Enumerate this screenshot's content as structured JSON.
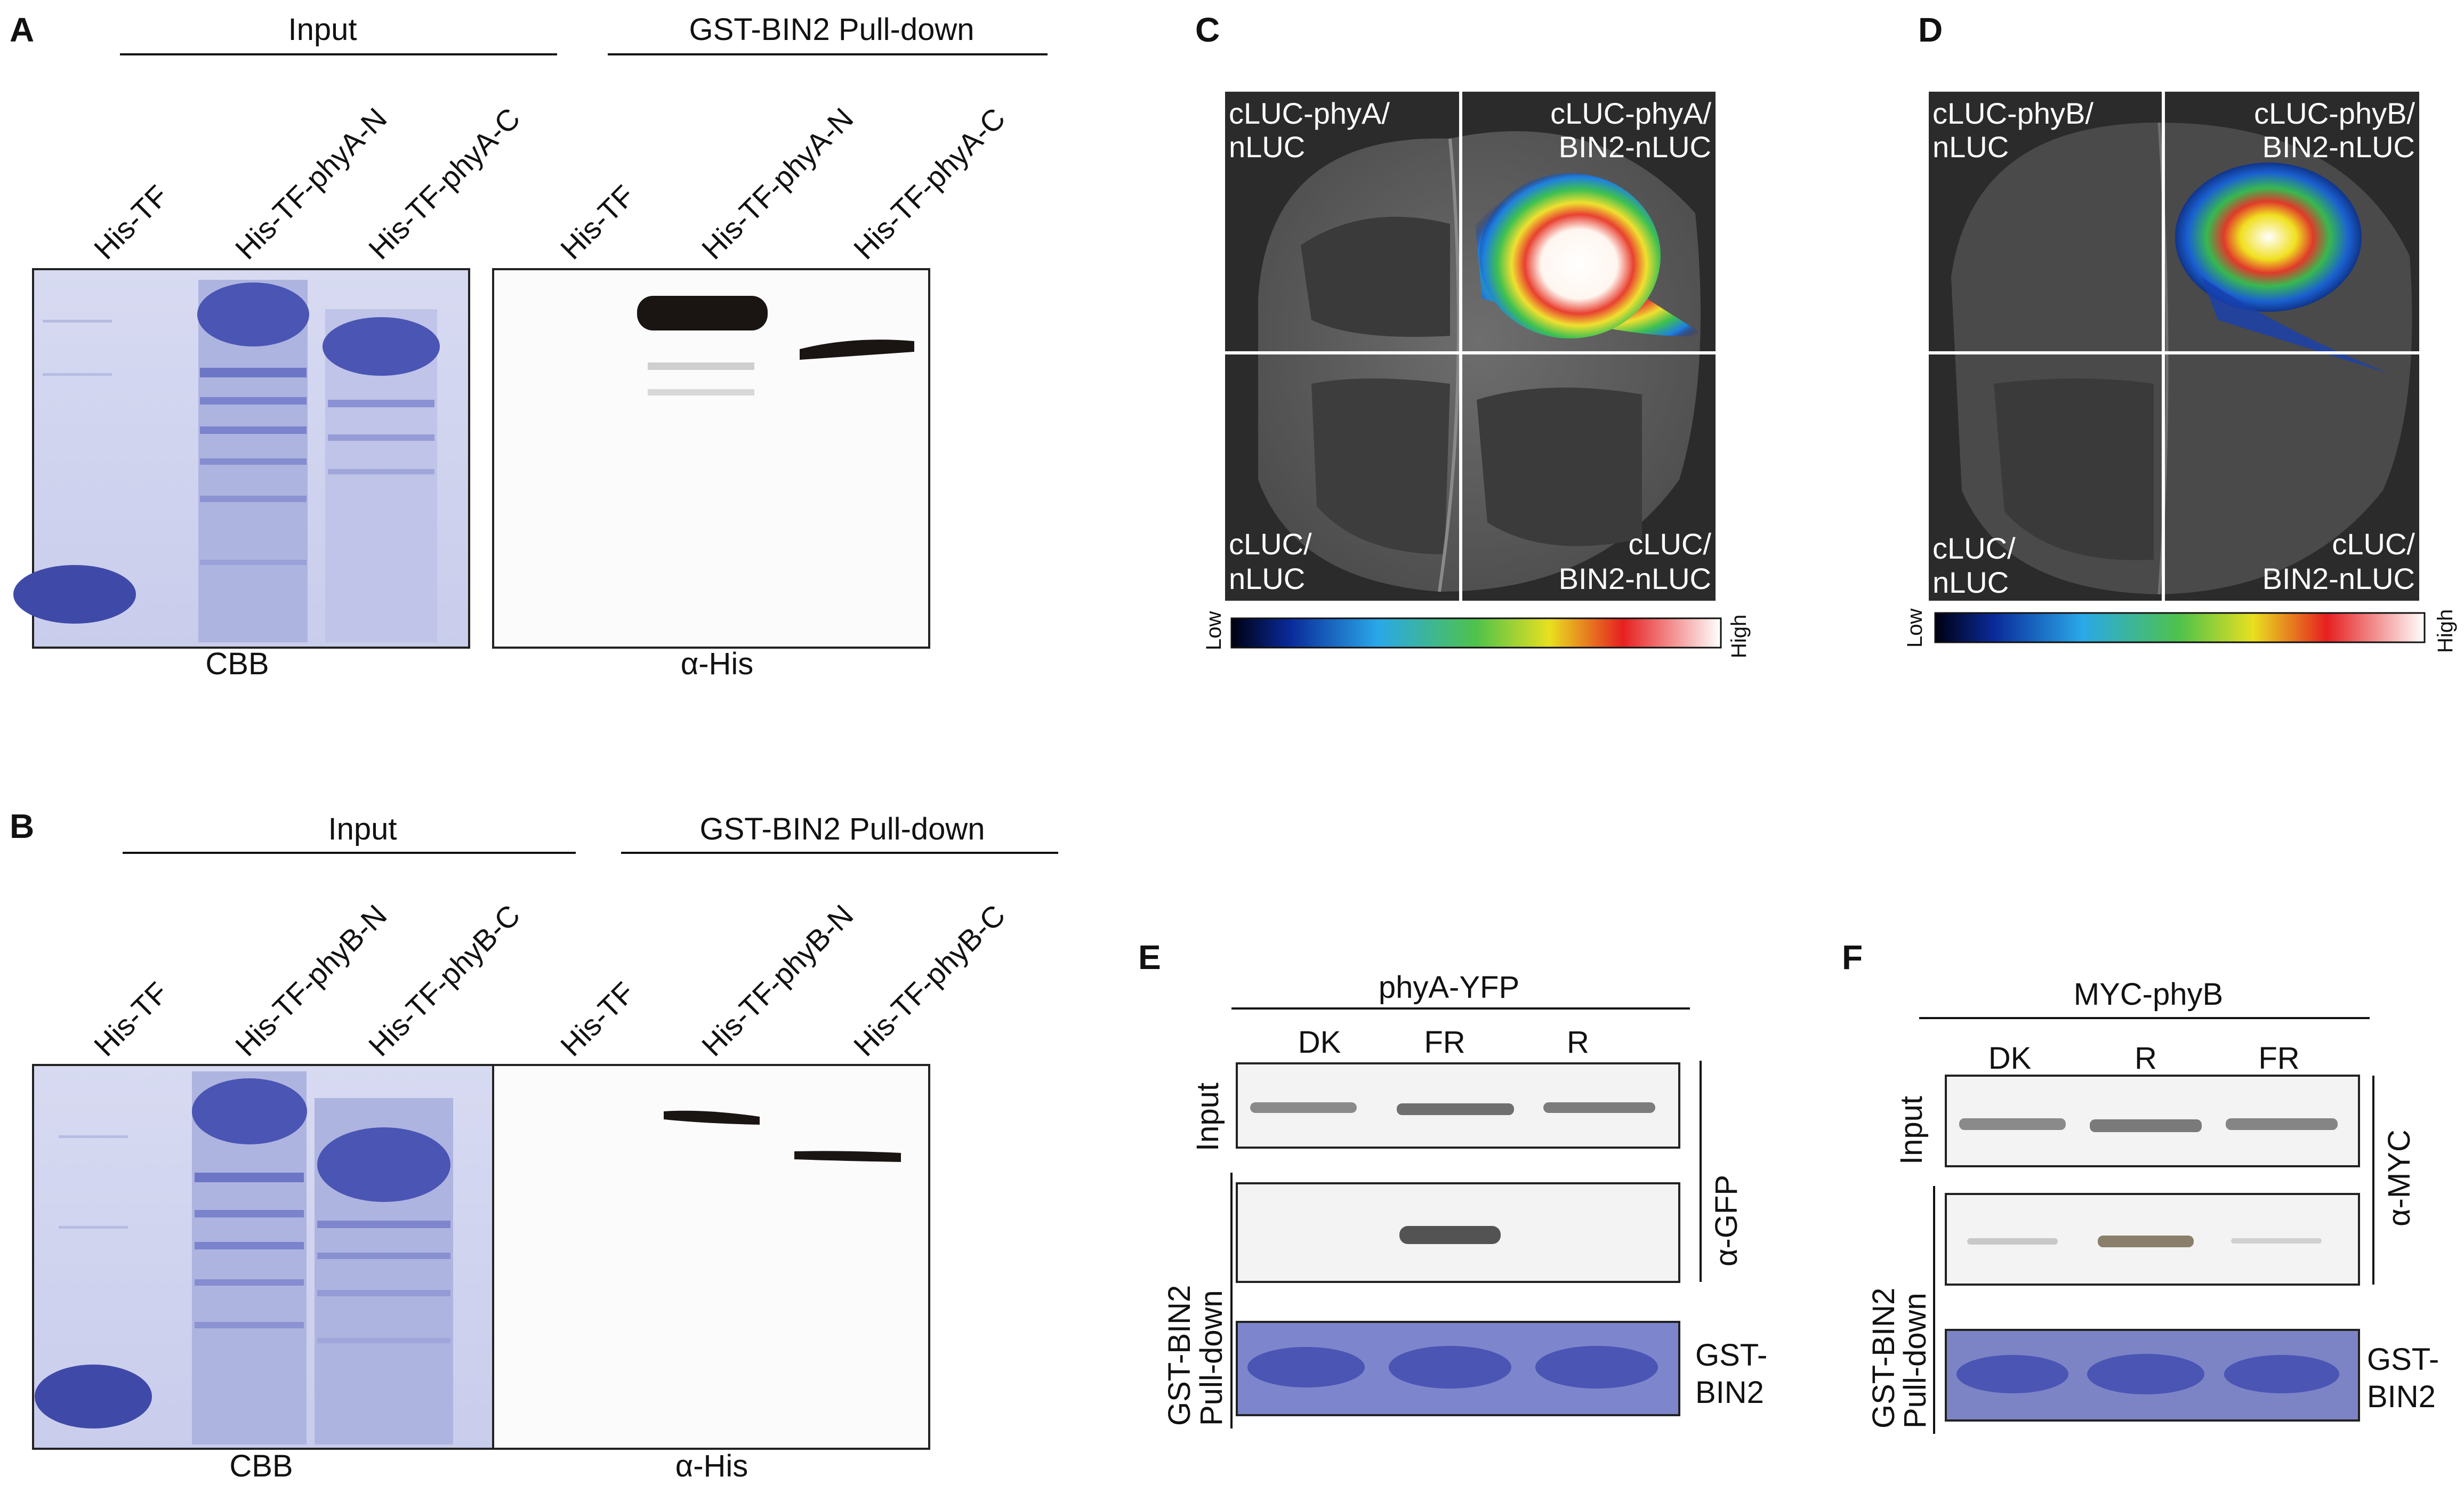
{
  "panels": {
    "A": {
      "letter": "A",
      "input_header": "Input",
      "pulldown_header": "GST-BIN2 Pull-down",
      "input_lanes": [
        "His-TF",
        "His-TF-phyA-N",
        "His-TF-phyA-C"
      ],
      "pulldown_lanes": [
        "His-TF",
        "His-TF-phyA-N",
        "His-TF-phyA-C"
      ],
      "input_caption": "CBB",
      "pulldown_caption": "α-His"
    },
    "B": {
      "letter": "B",
      "input_header": "Input",
      "pulldown_header": "GST-BIN2 Pull-down",
      "input_lanes": [
        "His-TF",
        "His-TF-phyB-N",
        "His-TF-phyB-C"
      ],
      "pulldown_lanes": [
        "His-TF",
        "His-TF-phyB-N",
        "His-TF-phyB-C"
      ],
      "input_caption": "CBB",
      "pulldown_caption": "α-His"
    },
    "C": {
      "letter": "C",
      "quadrants": {
        "tl": [
          "cLUC-phyA/",
          "nLUC"
        ],
        "tr": [
          "cLUC-phyA/",
          "BIN2-nLUC"
        ],
        "bl": [
          "cLUC/",
          "nLUC"
        ],
        "br": [
          "cLUC/",
          "BIN2-nLUC"
        ]
      },
      "scale_low": "Low",
      "scale_high": "High"
    },
    "D": {
      "letter": "D",
      "quadrants": {
        "tl": [
          "cLUC-phyB/",
          "nLUC"
        ],
        "tr": [
          "cLUC-phyB/",
          "BIN2-nLUC"
        ],
        "bl": [
          "cLUC/",
          "nLUC"
        ],
        "br": [
          "cLUC/",
          "BIN2-nLUC"
        ]
      },
      "scale_low": "Low",
      "scale_high": "High"
    },
    "E": {
      "letter": "E",
      "header": "phyA-YFP",
      "lanes": [
        "DK",
        "FR",
        "R"
      ],
      "row_input": "Input",
      "row_pulldown": [
        "GST-BIN2",
        "Pull-down"
      ],
      "antibody": "α-GFP",
      "gst_label": [
        "GST-",
        "BIN2"
      ]
    },
    "F": {
      "letter": "F",
      "header": "MYC-phyB",
      "lanes": [
        "DK",
        "R",
        "FR"
      ],
      "row_input": "Input",
      "row_pulldown": [
        "GST-BIN2",
        "Pull-down"
      ],
      "antibody": "α-MYC",
      "gst_label": [
        "GST-",
        "BIN2"
      ]
    }
  },
  "colors": {
    "coomassie": "#4a55b4",
    "gel_bg": "#cfd3ee",
    "blot_band": "#1a1512",
    "leaf_bg": "#2b2b2b"
  }
}
